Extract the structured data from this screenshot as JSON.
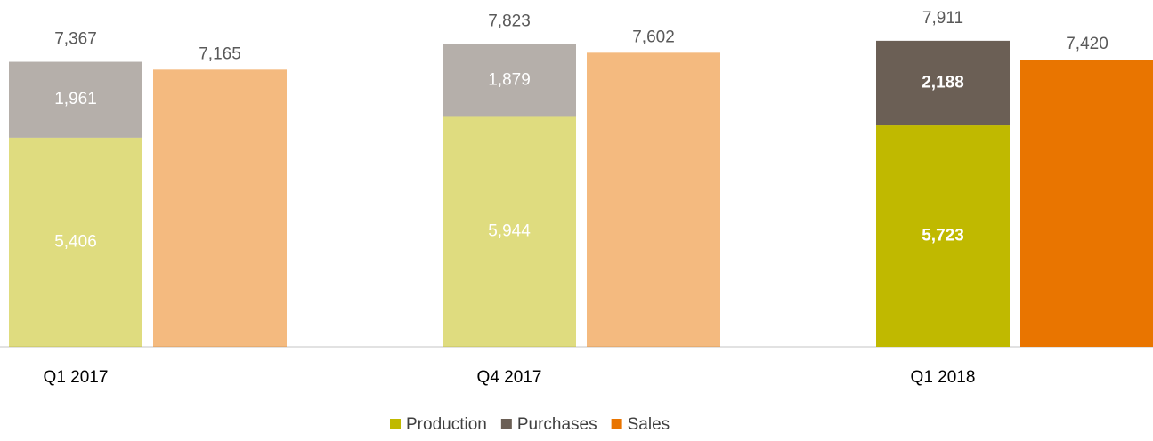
{
  "chart_data": {
    "type": "bar",
    "categories": [
      "Q1 2017",
      "Q4 2017",
      "Q1 2018"
    ],
    "highlight": "Q1 2018",
    "series": [
      {
        "name": "Production",
        "color": "#c0b900",
        "stack": "supply",
        "values": [
          5406,
          5944,
          5723
        ],
        "value_labels": [
          "5,406",
          "5,944",
          "5,723"
        ]
      },
      {
        "name": "Purchases",
        "color": "#6b5f55",
        "stack": "supply",
        "values": [
          1961,
          1879,
          2188
        ],
        "value_labels": [
          "1,961",
          "1,879",
          "2,188"
        ]
      },
      {
        "name": "Sales",
        "color": "#e97500",
        "stack": "sales",
        "values": [
          7165,
          7602,
          7420
        ],
        "value_labels": [
          "7,165",
          "7,602",
          "7,420"
        ]
      }
    ],
    "totals": [
      7367,
      7823,
      7911
    ],
    "total_labels": [
      "7,367",
      "7,823",
      "7,911"
    ],
    "ylim": [
      0,
      8000
    ]
  }
}
